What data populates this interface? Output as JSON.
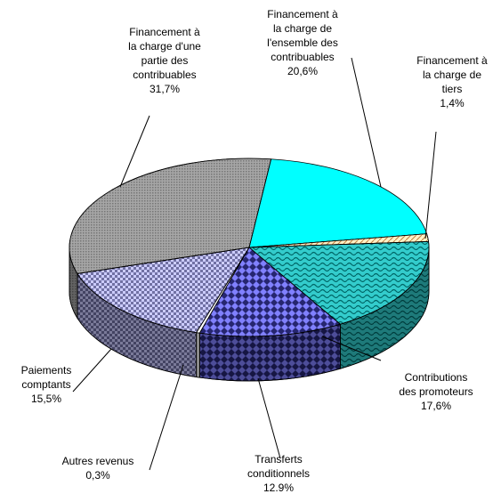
{
  "chart_data": {
    "type": "pie3d",
    "categories": [
      "Financement à la charge de l'ensemble des contribuables",
      "Financement à la charge de tiers",
      "Contributions des promoteurs",
      "Transferts conditionnels",
      "Autres revenus",
      "Paiements comptants",
      "Financement à la charge d'une partie des contribuables"
    ],
    "values": [
      20.6,
      1.4,
      17.6,
      12.9,
      0.3,
      15.5,
      31.7
    ],
    "value_labels": [
      "20,6%",
      "1,4%",
      "17,6%",
      "12.9%",
      "0,3%",
      "15,5%",
      "31,7%"
    ],
    "colors": [
      "#00ffff",
      "#fff3c8",
      "#33cccc",
      "#8080ff",
      "#ffffff",
      "#ccccff",
      "#a6a6a6"
    ]
  }
}
